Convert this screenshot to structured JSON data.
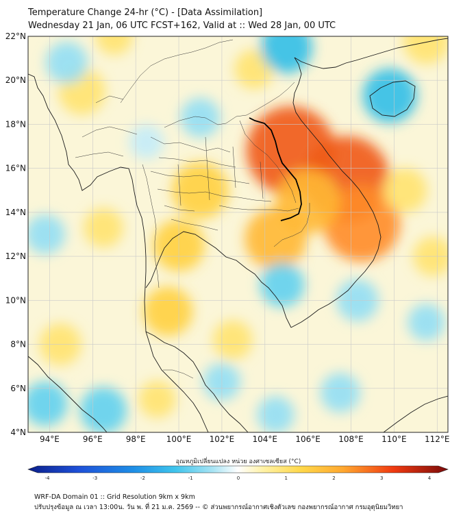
{
  "title": {
    "line1": "Temperature Change 24-hr (°C) - [Data Assimilation]",
    "line2": "Wednesday 21 Jan, 06 UTC FCST+162, Valid at :: Wed 28 Jan, 00 UTC"
  },
  "map": {
    "lat_range": [
      4,
      22
    ],
    "lon_range": [
      93,
      112.5
    ],
    "lat_ticks": [
      {
        "value": 22,
        "label": "22°N"
      },
      {
        "value": 20,
        "label": "20°N"
      },
      {
        "value": 18,
        "label": "18°N"
      },
      {
        "value": 16,
        "label": "16°N"
      },
      {
        "value": 14,
        "label": "14°N"
      },
      {
        "value": 12,
        "label": "12°N"
      },
      {
        "value": 10,
        "label": "10°N"
      },
      {
        "value": 8,
        "label": "8°N"
      },
      {
        "value": 6,
        "label": "6°N"
      },
      {
        "value": 4,
        "label": "4°N"
      }
    ],
    "lon_ticks": [
      {
        "value": 94,
        "label": "94°E"
      },
      {
        "value": 96,
        "label": "96°E"
      },
      {
        "value": 98,
        "label": "98°E"
      },
      {
        "value": 100,
        "label": "100°E"
      },
      {
        "value": 102,
        "label": "102°E"
      },
      {
        "value": 104,
        "label": "104°E"
      },
      {
        "value": 106,
        "label": "106°E"
      },
      {
        "value": 108,
        "label": "108°E"
      },
      {
        "value": 110,
        "label": "110°E"
      },
      {
        "value": 112,
        "label": "112°E"
      }
    ],
    "anomalies": [
      {
        "lon": 105.2,
        "lat": 16.8,
        "value": 2.6
      },
      {
        "lon": 107.8,
        "lat": 15.5,
        "value": 2.5
      },
      {
        "lon": 108.5,
        "lat": 13.5,
        "value": 2.1
      },
      {
        "lon": 106.0,
        "lat": 14.5,
        "value": 1.6
      },
      {
        "lon": 104.5,
        "lat": 12.8,
        "value": 1.5
      },
      {
        "lon": 101.0,
        "lat": 15.0,
        "value": 1.3
      },
      {
        "lon": 100.0,
        "lat": 12.5,
        "value": 1.1
      },
      {
        "lon": 99.5,
        "lat": 9.5,
        "value": 1.0
      },
      {
        "lon": 95.5,
        "lat": 19.5,
        "value": 0.9
      },
      {
        "lon": 110.5,
        "lat": 15.0,
        "value": 0.8
      },
      {
        "lon": 111.5,
        "lat": 21.8,
        "value": 0.9
      },
      {
        "lon": 94.5,
        "lat": 8.0,
        "value": 0.7
      },
      {
        "lon": 103.5,
        "lat": 20.5,
        "value": 0.6
      },
      {
        "lon": 102.5,
        "lat": 8.2,
        "value": 0.6
      },
      {
        "lon": 96.5,
        "lat": 5.0,
        "value": -0.9
      },
      {
        "lon": 93.8,
        "lat": 5.3,
        "value": -0.8
      },
      {
        "lon": 109.8,
        "lat": 19.3,
        "value": -1.2
      },
      {
        "lon": 105.0,
        "lat": 21.5,
        "value": -1.1
      },
      {
        "lon": 94.8,
        "lat": 20.8,
        "value": -0.7
      },
      {
        "lon": 101.0,
        "lat": 18.3,
        "value": -0.6
      },
      {
        "lon": 104.8,
        "lat": 10.7,
        "value": -0.8
      },
      {
        "lon": 108.3,
        "lat": 10.0,
        "value": -0.7
      },
      {
        "lon": 102.0,
        "lat": 6.3,
        "value": -0.5
      },
      {
        "lon": 107.5,
        "lat": 5.8,
        "value": -0.6
      },
      {
        "lon": 98.5,
        "lat": 17.2,
        "value": -0.4
      },
      {
        "lon": 111.5,
        "lat": 9.0,
        "value": -0.5
      },
      {
        "lon": 93.8,
        "lat": 13.0,
        "value": -0.6
      },
      {
        "lon": 96.5,
        "lat": 13.3,
        "value": 0.6
      },
      {
        "lon": 104.5,
        "lat": 4.8,
        "value": -0.5
      },
      {
        "lon": 99.0,
        "lat": 5.5,
        "value": 0.5
      },
      {
        "lon": 111.8,
        "lat": 12.0,
        "value": 0.6
      },
      {
        "lon": 97.0,
        "lat": 22.0,
        "value": 0.5
      }
    ]
  },
  "colorbar": {
    "title": "อุณหภูมิเปลี่ยนแปลง หน่วย องศาเซลเซียส (°C)",
    "min": -4,
    "max": 4,
    "ticks": [
      {
        "value": -4,
        "label": "-4"
      },
      {
        "value": -3,
        "label": "-3"
      },
      {
        "value": -2,
        "label": "-2"
      },
      {
        "value": -1,
        "label": "-1"
      },
      {
        "value": 0,
        "label": "0"
      },
      {
        "value": 1,
        "label": "1"
      },
      {
        "value": 2,
        "label": "2"
      },
      {
        "value": 3,
        "label": "3"
      },
      {
        "value": 4,
        "label": "4"
      }
    ]
  },
  "footer": {
    "line1": "WRF-DA Domain 01 :: Grid Resolution 9km x 9km",
    "line2": "ปรับปรุงข้อมูล ณ เวลา 13:00น. วัน พ. ที่ 21 ม.ค. 2569 -- © ส่วนพยากรณ์อากาศเชิงตัวเลข กองพยากรณ์อากาศ กรมอุตุนิยมวิทยา"
  }
}
